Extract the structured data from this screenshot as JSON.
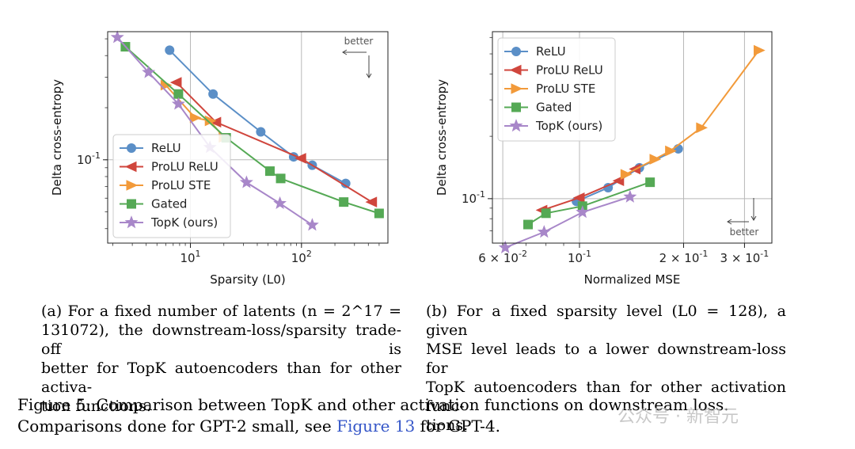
{
  "chart_data": [
    {
      "type": "line",
      "xlabel": "Sparsity (L0)",
      "ylabel": "Delta cross-entropy",
      "xscale": "log",
      "yscale": "log",
      "xlim": [
        1.8,
        600
      ],
      "ylim": [
        0.033,
        0.55
      ],
      "xticks": [
        {
          "v": 10,
          "label": "10^1"
        },
        {
          "v": 100,
          "label": "10^2"
        }
      ],
      "yticks": [
        {
          "v": 0.1,
          "label": "10^-1"
        }
      ],
      "grid": true,
      "legend_position": "lower-left",
      "annotation": "better",
      "series": [
        {
          "name": "ReLU",
          "marker": "circle",
          "color": "#5b8fc7",
          "x": [
            6.5,
            16,
            43,
            85,
            125,
            250
          ],
          "y": [
            0.43,
            0.24,
            0.145,
            0.104,
            0.093,
            0.073
          ]
        },
        {
          "name": "ProLU ReLU",
          "marker": "triangle-left",
          "color": "#d0463d",
          "x": [
            7.5,
            17,
            99,
            430
          ],
          "y": [
            0.28,
            0.165,
            0.102,
            0.057
          ]
        },
        {
          "name": "ProLU STE",
          "marker": "triangle-right",
          "color": "#f29a3a",
          "x": [
            6,
            11,
            15,
            20
          ],
          "y": [
            0.27,
            0.175,
            0.168,
            0.135
          ]
        },
        {
          "name": "Gated",
          "marker": "square",
          "color": "#55a955",
          "x": [
            2.6,
            7.8,
            21,
            52,
            65,
            240,
            500
          ],
          "y": [
            0.45,
            0.24,
            0.134,
            0.086,
            0.078,
            0.057,
            0.049
          ]
        },
        {
          "name": "TopK (ours)",
          "marker": "star",
          "color": "#a887c9",
          "x": [
            2.2,
            4.2,
            7.8,
            15,
            32,
            64,
            125
          ],
          "y": [
            0.51,
            0.32,
            0.21,
            0.118,
            0.074,
            0.056,
            0.042
          ]
        }
      ]
    },
    {
      "type": "line",
      "xlabel": "Normalized MSE",
      "ylabel": "Delta cross-entropy",
      "xscale": "log",
      "yscale": "log",
      "xlim": [
        0.056,
        0.36
      ],
      "ylim": [
        0.061,
        0.64
      ],
      "xticks": [
        {
          "v": 0.06,
          "label": "6 × 10^-2"
        },
        {
          "v": 0.1,
          "label": "10^-1"
        },
        {
          "v": 0.2,
          "label": "2 × 10^-1"
        },
        {
          "v": 0.3,
          "label": "3 × 10^-1"
        }
      ],
      "yticks": [
        {
          "v": 0.1,
          "label": "10^-1"
        }
      ],
      "grid": true,
      "legend_position": "upper-left",
      "annotation": "better",
      "series": [
        {
          "name": "ReLU",
          "marker": "circle",
          "color": "#5b8fc7",
          "x": [
            0.098,
            0.121,
            0.149,
            0.193
          ],
          "y": [
            0.097,
            0.113,
            0.141,
            0.174
          ]
        },
        {
          "name": "ProLU ReLU",
          "marker": "triangle-left",
          "color": "#d0463d",
          "x": [
            0.078,
            0.1,
            0.13,
            0.145
          ],
          "y": [
            0.088,
            0.101,
            0.122,
            0.139
          ]
        },
        {
          "name": "ProLU STE",
          "marker": "triangle-right",
          "color": "#f29a3a",
          "x": [
            0.136,
            0.165,
            0.183,
            0.225,
            0.33
          ],
          "y": [
            0.131,
            0.155,
            0.17,
            0.22,
            0.52
          ]
        },
        {
          "name": "Gated",
          "marker": "square",
          "color": "#55a955",
          "x": [
            0.071,
            0.08,
            0.102,
            0.16
          ],
          "y": [
            0.075,
            0.085,
            0.092,
            0.12
          ]
        },
        {
          "name": "TopK (ours)",
          "marker": "star",
          "color": "#a887c9",
          "x": [
            0.061,
            0.079,
            0.102,
            0.14
          ],
          "y": [
            0.058,
            0.069,
            0.086,
            0.102
          ]
        }
      ]
    }
  ],
  "captions": {
    "a_lines": [
      "(a) For a fixed number of latents (n = 2^17 =",
      "131072), the downstream-loss/sparsity trade-off is",
      "better for TopK autoencoders than for other activa-",
      "tion functions."
    ],
    "b_lines": [
      "(b) For a fixed sparsity level (L0 = 128), a given",
      "MSE level leads to a lower downstream-loss for",
      "TopK autoencoders than for other activation func-",
      "tions."
    ],
    "figure_prefix": "Figure 5: Comparison between TopK and other activation functions on downstream loss. Comparisons done for GPT-2 small, see ",
    "figure_link": "Figure 13",
    "figure_suffix": " for GPT-4."
  },
  "watermark": "公众号 · 新智元"
}
